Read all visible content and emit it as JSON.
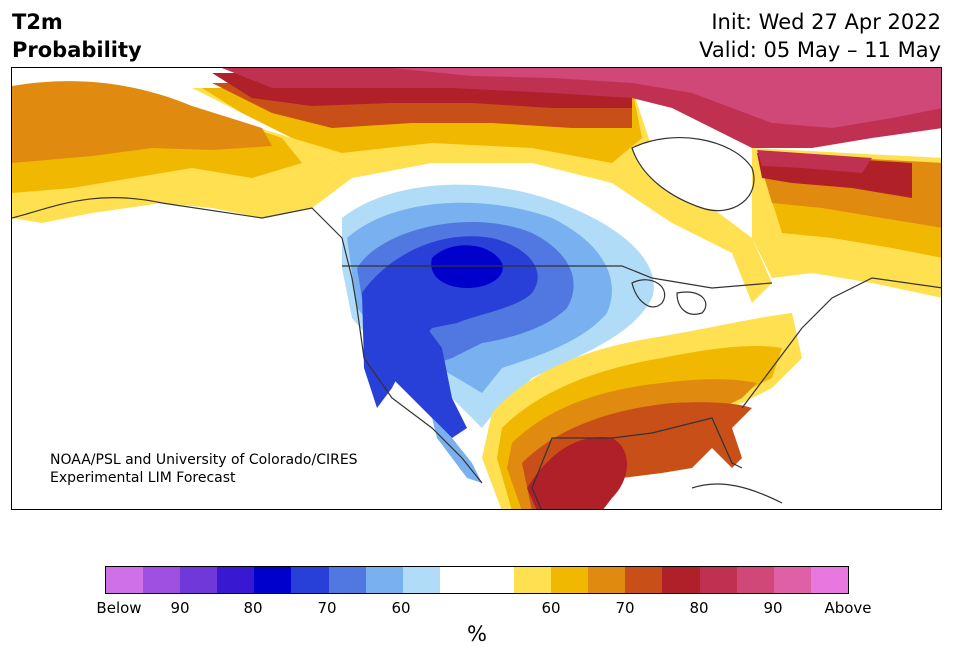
{
  "header": {
    "variable": "T2m",
    "product": "Probability",
    "init": "Init: Wed 27 Apr 2022",
    "valid": "Valid: 05 May – 11 May"
  },
  "map": {
    "region": "North America",
    "credit_line1": "NOAA/PSL and University of Colorado/CIRES",
    "credit_line2": "Experimental LIM Forecast",
    "colors": {
      "ocean": "#ffffff",
      "coast": "#333333"
    }
  },
  "colorbar": {
    "unit": "%",
    "tick_labels": [
      "Below",
      "90",
      "80",
      "70",
      "60",
      "60",
      "70",
      "80",
      "90",
      "Above"
    ],
    "below_colors": [
      "#d070e8",
      "#a050e0",
      "#7038d8",
      "#3818d0",
      "#0000cc",
      "#2840d8",
      "#5078e0",
      "#78b0f0",
      "#b0dcf8"
    ],
    "neutral_color": "#ffffff",
    "above_colors": [
      "#ffe050",
      "#f0b800",
      "#e08a10",
      "#c85018",
      "#b02028",
      "#c03050",
      "#d04878",
      "#e060a8",
      "#e878e0"
    ]
  }
}
